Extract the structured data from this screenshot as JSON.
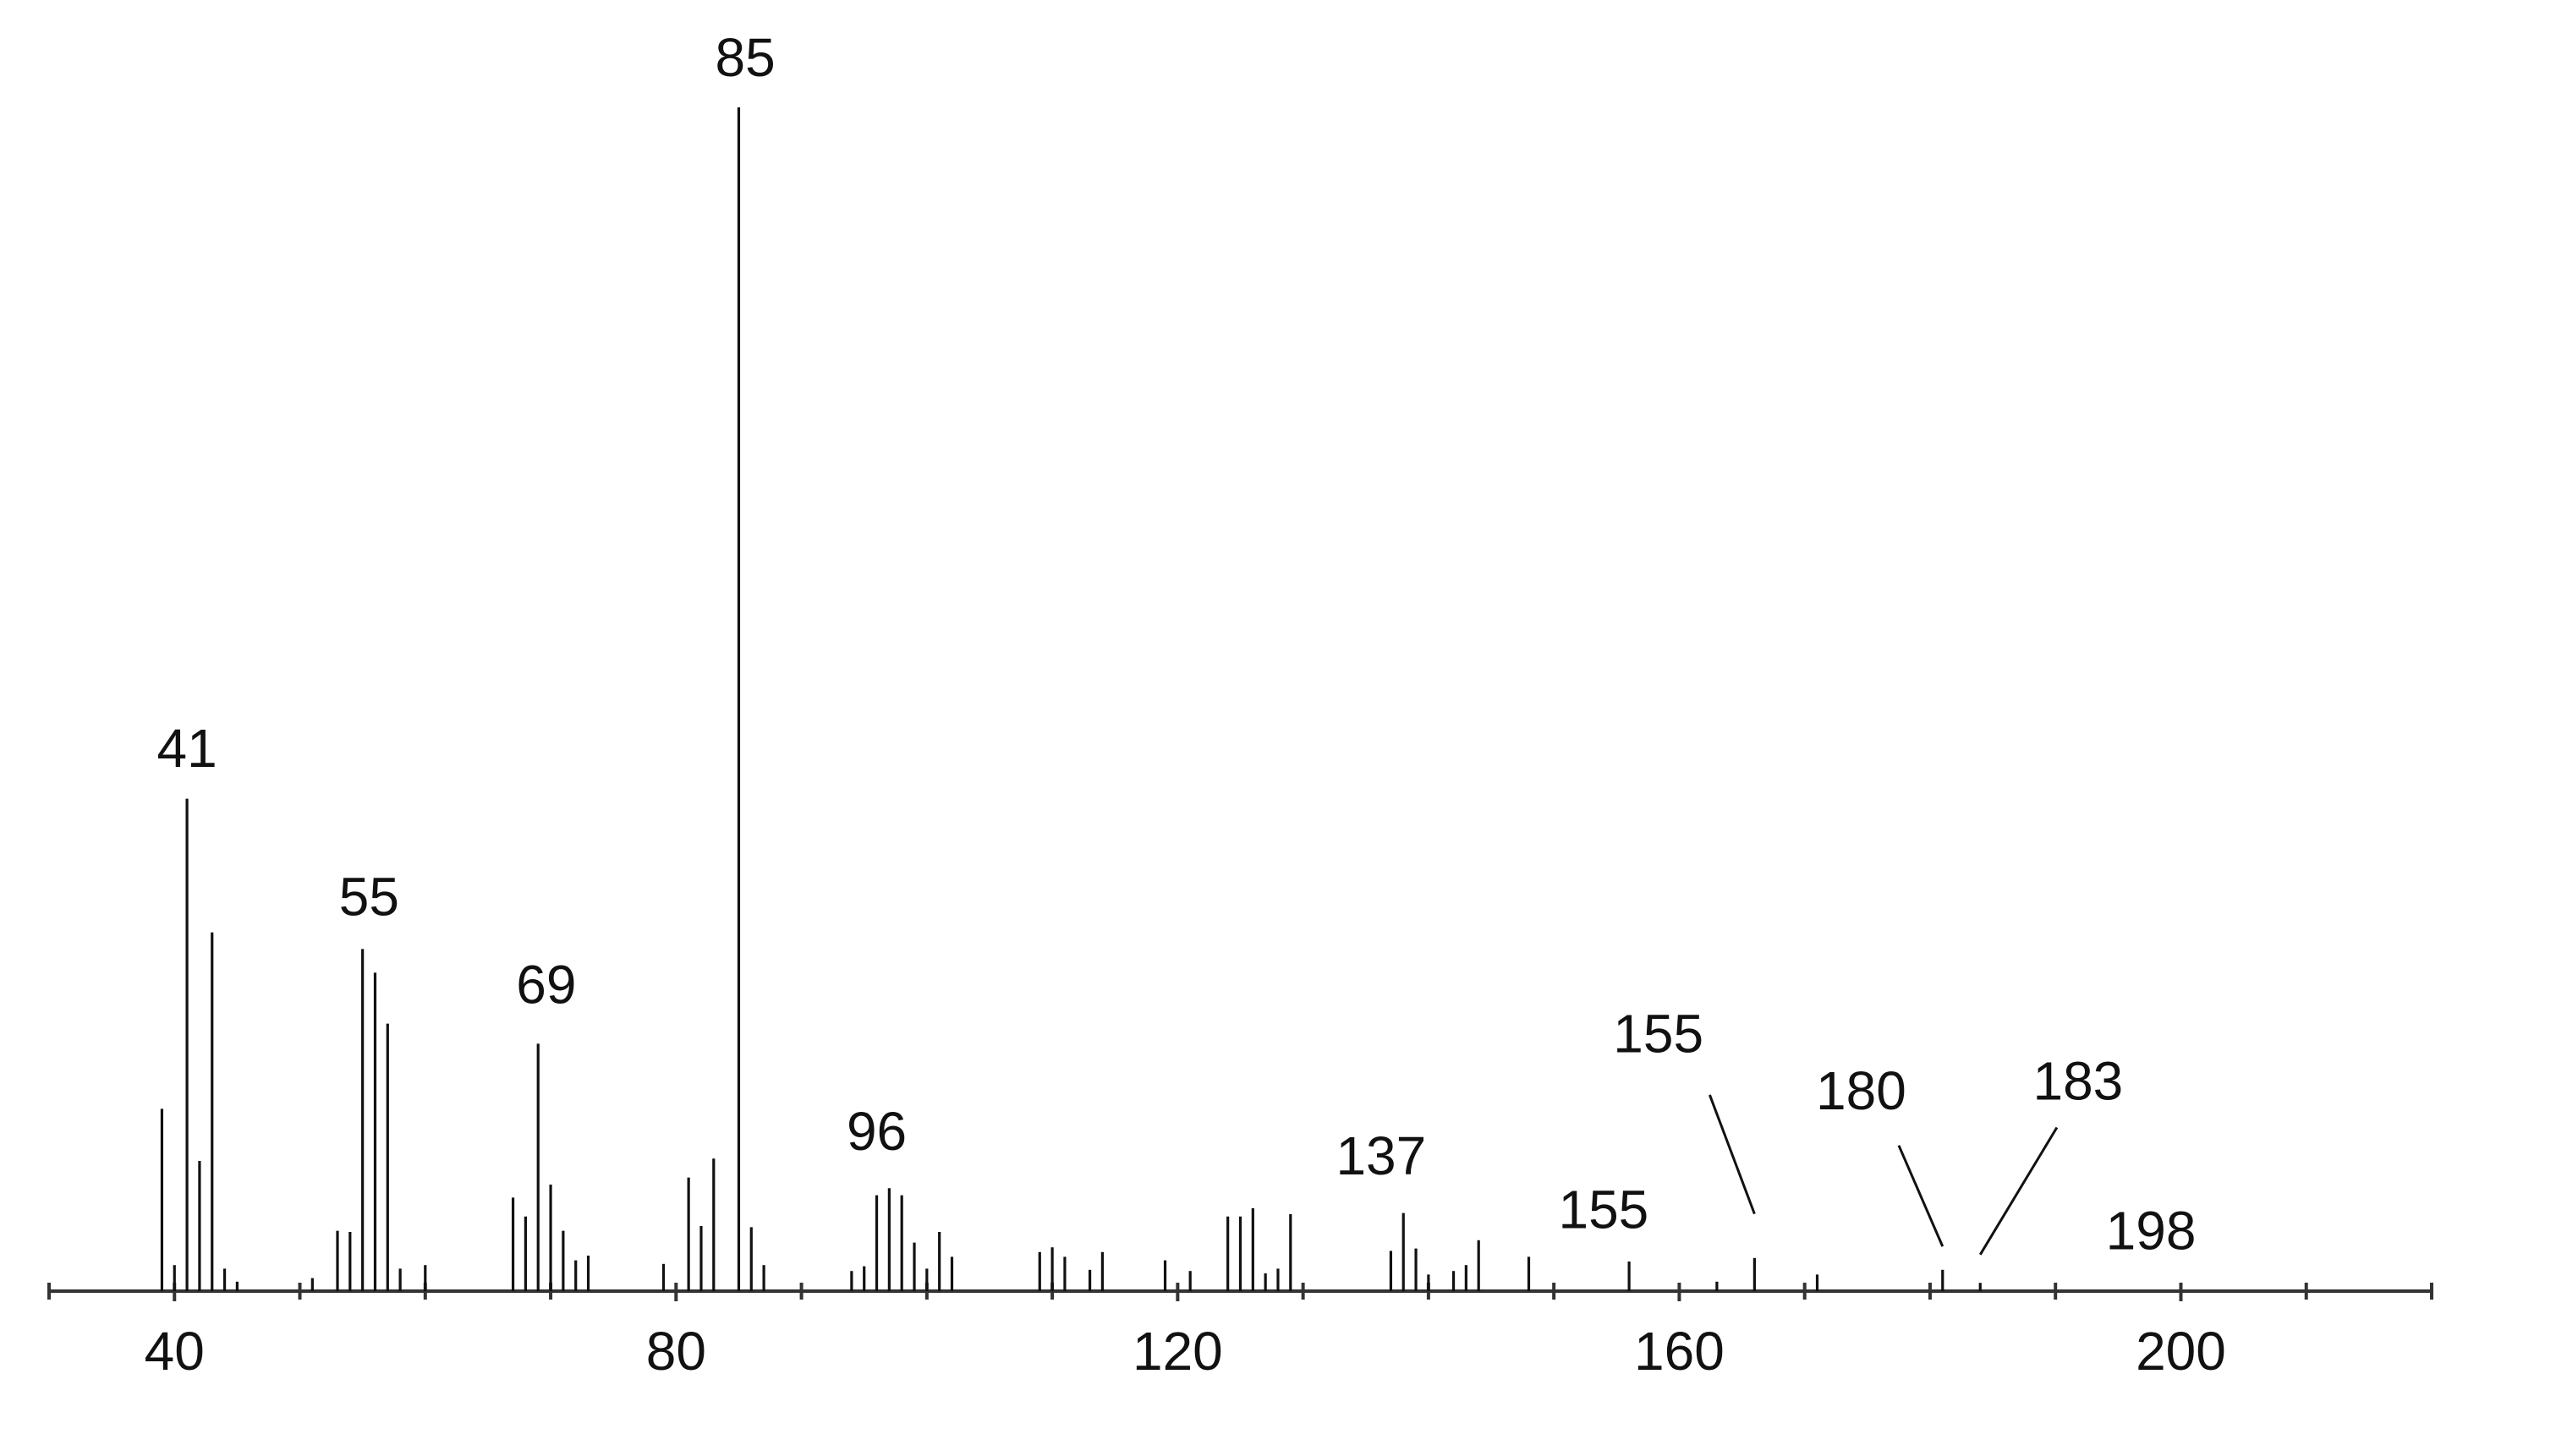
{
  "chart_data": {
    "type": "stem",
    "color": "#111111",
    "x": [
      39,
      40,
      41,
      42,
      43,
      44,
      45,
      51,
      53,
      54,
      55,
      56,
      57,
      58,
      60,
      67,
      68,
      69,
      70,
      71,
      72,
      73,
      79,
      81,
      82,
      83,
      85,
      86,
      87,
      94,
      95,
      96,
      97,
      98,
      99,
      100,
      101,
      102,
      109,
      110,
      111,
      113,
      114,
      119,
      121,
      124,
      125,
      126,
      127,
      128,
      129,
      137,
      138,
      139,
      140,
      142,
      143,
      144,
      148,
      156,
      163,
      166,
      171,
      181,
      184
    ],
    "values": [
      15.4,
      2.2,
      41.6,
      11,
      30.3,
      1.9,
      0.8,
      1.1,
      5.1,
      5,
      28.9,
      26.9,
      22.6,
      1.9,
      2.2,
      7.9,
      6.3,
      20.9,
      9,
      5.1,
      2.6,
      3,
      2.3,
      9.6,
      5.5,
      11.2,
      100,
      5.4,
      2.2,
      1.7,
      2.1,
      8.1,
      8.7,
      8.1,
      4.1,
      1.9,
      5,
      2.9,
      3.3,
      3.7,
      2.9,
      1.8,
      3.3,
      2.6,
      1.7,
      6.3,
      6.3,
      7,
      1.5,
      1.9,
      6.5,
      3.4,
      6.6,
      3.6,
      1.4,
      1.7,
      2.2,
      4.3,
      2.9,
      2.5,
      0.8,
      2.8,
      1.4,
      1.8,
      0.7
    ],
    "xlim": [
      30,
      220
    ],
    "ylim": [
      0,
      100
    ],
    "xticks": [
      40,
      80,
      120,
      160,
      200
    ],
    "xminorticks": [
      30,
      50,
      60,
      70,
      90,
      100,
      110,
      130,
      140,
      150,
      170,
      180,
      190,
      210,
      220
    ],
    "annotations": [
      {
        "text": "41",
        "x": 41
      },
      {
        "text": "55",
        "x": 55
      },
      {
        "text": "69",
        "x": 69
      },
      {
        "text": "85",
        "x": 85
      },
      {
        "text": "96",
        "x": 96
      },
      {
        "text": "137",
        "x": 137
      },
      {
        "text": "155",
        "x": 155
      },
      {
        "text": "155",
        "x": 166
      },
      {
        "text": "180",
        "x": 181
      },
      {
        "text": "183",
        "x": 184
      },
      {
        "text": "198",
        "x": 198
      }
    ]
  }
}
